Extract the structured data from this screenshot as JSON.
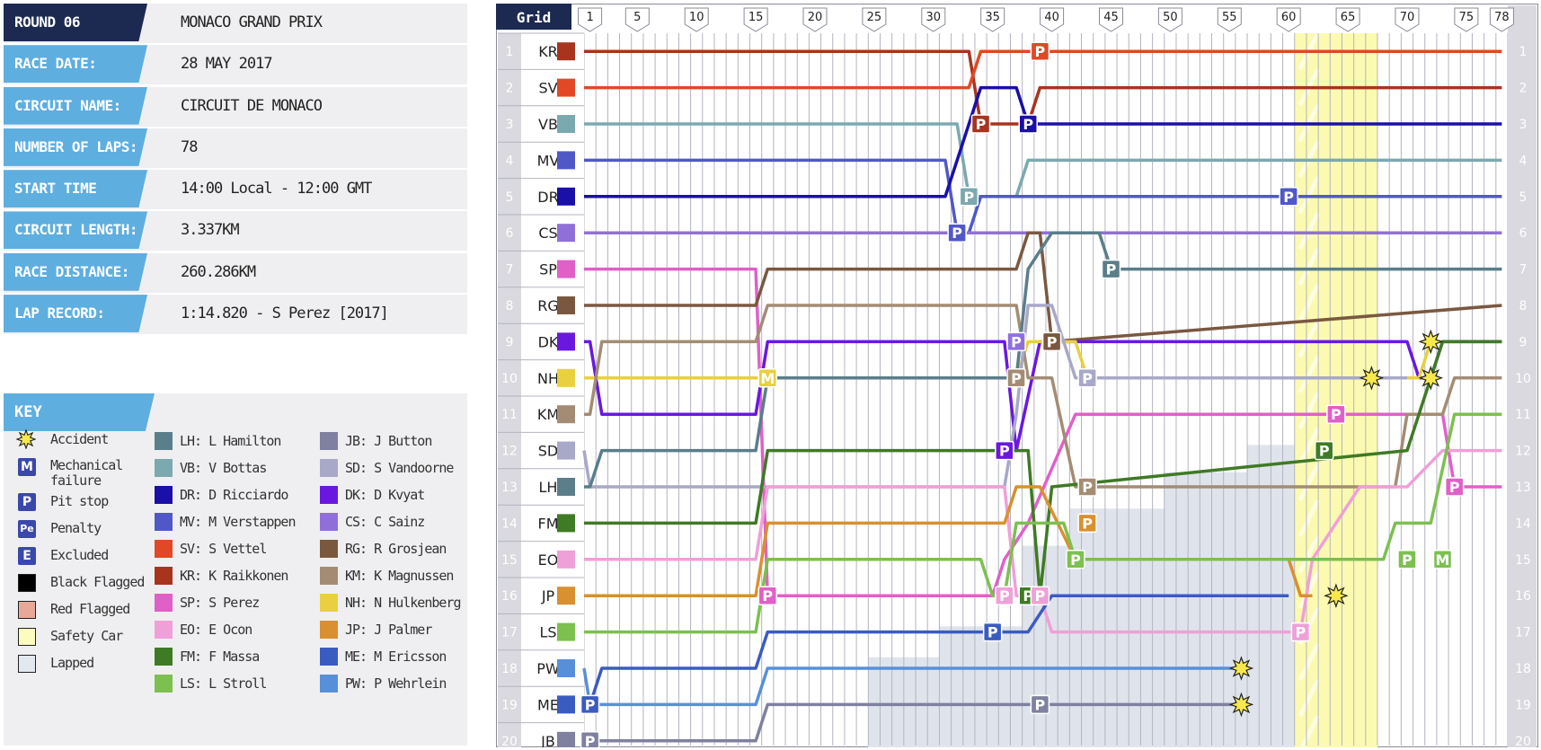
{
  "info": [
    {
      "label": "ROUND 06",
      "value": "MONACO GRAND PRIX"
    },
    {
      "label": "RACE DATE:",
      "value": "28 MAY 2017"
    },
    {
      "label": "CIRCUIT NAME:",
      "value": "CIRCUIT DE MONACO"
    },
    {
      "label": "NUMBER OF LAPS:",
      "value": "78"
    },
    {
      "label": "START TIME",
      "value": "14:00 Local - 12:00 GMT"
    },
    {
      "label": "CIRCUIT LENGTH:",
      "value": "3.337KM"
    },
    {
      "label": "RACE DISTANCE:",
      "value": "260.286KM"
    },
    {
      "label": "LAP RECORD:",
      "value": "1:14.820 - S Perez [2017]"
    }
  ],
  "key": {
    "title": "KEY",
    "symbols": [
      {
        "icon": "accident-icon",
        "label": "Accident"
      },
      {
        "icon": "mechanical-failure-icon",
        "glyph": "M",
        "label": "Mechanical failure"
      },
      {
        "icon": "pit-stop-icon",
        "glyph": "P",
        "label": "Pit stop"
      },
      {
        "icon": "penalty-icon",
        "glyph": "Pe",
        "label": "Penalty"
      },
      {
        "icon": "excluded-icon",
        "glyph": "E",
        "label": "Excluded"
      },
      {
        "icon": "black-flag-icon",
        "label": "Black Flagged",
        "color": "#000000"
      },
      {
        "icon": "red-flag-icon",
        "label": "Red Flagged",
        "color": "#e8a898"
      },
      {
        "icon": "safety-car-icon",
        "label": "Safety Car",
        "color": "#fdfcc0"
      },
      {
        "icon": "lapped-icon",
        "label": "Lapped",
        "color": "#e2e8ef"
      }
    ],
    "drivers": [
      {
        "code": "LH",
        "label": "LH: L Hamilton",
        "color": "#5a7e8a"
      },
      {
        "code": "VB",
        "label": "VB: V Bottas",
        "color": "#7ba9b0"
      },
      {
        "code": "DR",
        "label": "DR: D Ricciardo",
        "color": "#1a0fa8"
      },
      {
        "code": "MV",
        "label": "MV: M Verstappen",
        "color": "#5058c8"
      },
      {
        "code": "SV",
        "label": "SV: S Vettel",
        "color": "#e04826"
      },
      {
        "code": "KR",
        "label": "KR: K Raikkonen",
        "color": "#a8341e"
      },
      {
        "code": "SP",
        "label": "SP: S Perez",
        "color": "#e060c8"
      },
      {
        "code": "EO",
        "label": "EO: E Ocon",
        "color": "#f0a0d8"
      },
      {
        "code": "FM",
        "label": "FM: F Massa",
        "color": "#3f7a24"
      },
      {
        "code": "LS",
        "label": "LS: L Stroll",
        "color": "#7cc050"
      },
      {
        "code": "JB",
        "label": "JB: J Button",
        "color": "#8080a0"
      },
      {
        "code": "SD",
        "label": "SD: S Vandoorne",
        "color": "#a8a8c8"
      },
      {
        "code": "DK",
        "label": "DK: D Kvyat",
        "color": "#6a18e0"
      },
      {
        "code": "CS",
        "label": "CS: C Sainz",
        "color": "#9070d8"
      },
      {
        "code": "RG",
        "label": "RG: R Grosjean",
        "color": "#7a5840"
      },
      {
        "code": "KM",
        "label": "KM: K Magnussen",
        "color": "#a48c74"
      },
      {
        "code": "NH",
        "label": "NH: N Hulkenberg",
        "color": "#e8d040"
      },
      {
        "code": "JP",
        "label": "JP: J Palmer",
        "color": "#d89030"
      },
      {
        "code": "ME",
        "label": "ME: M Ericsson",
        "color": "#3a5cc0"
      },
      {
        "code": "PW",
        "label": "PW: P Wehrlein",
        "color": "#5890d8"
      }
    ]
  },
  "chart_data": {
    "type": "line",
    "grid_header": "Grid",
    "total_laps": 78,
    "lap_ticks": [
      1,
      5,
      10,
      15,
      20,
      25,
      30,
      35,
      40,
      45,
      50,
      55,
      60,
      65,
      70,
      75,
      78
    ],
    "positions": [
      1,
      2,
      3,
      4,
      5,
      6,
      7,
      8,
      9,
      10,
      11,
      12,
      13,
      14,
      15,
      16,
      17,
      18,
      19,
      20
    ],
    "safety_car_laps": [
      61,
      67
    ],
    "grid_order": [
      "KR",
      "SV",
      "VB",
      "MV",
      "DR",
      "CS",
      "SP",
      "RG",
      "DK",
      "NH",
      "KM",
      "SD",
      "LH",
      "FM",
      "EO",
      "JP",
      "LS",
      "PW",
      "ME",
      "JB"
    ],
    "series": [
      {
        "name": "KR",
        "points": [
          [
            0,
            1
          ],
          [
            33,
            1
          ],
          [
            34,
            3
          ],
          [
            38,
            3
          ],
          [
            39,
            2
          ],
          [
            78,
            2
          ]
        ]
      },
      {
        "name": "SV",
        "points": [
          [
            0,
            2
          ],
          [
            33,
            2
          ],
          [
            34,
            1
          ],
          [
            78,
            1
          ]
        ]
      },
      {
        "name": "VB",
        "points": [
          [
            0,
            3
          ],
          [
            32,
            3
          ],
          [
            33,
            5
          ],
          [
            37,
            5
          ],
          [
            38,
            4
          ],
          [
            78,
            4
          ]
        ]
      },
      {
        "name": "MV",
        "points": [
          [
            0,
            4
          ],
          [
            31,
            4
          ],
          [
            32,
            6
          ],
          [
            33,
            6
          ],
          [
            34,
            5
          ],
          [
            78,
            5
          ]
        ]
      },
      {
        "name": "DR",
        "points": [
          [
            0,
            5
          ],
          [
            31,
            5
          ],
          [
            32,
            4
          ],
          [
            34,
            2
          ],
          [
            37,
            2
          ],
          [
            38,
            3
          ],
          [
            78,
            3
          ]
        ]
      },
      {
        "name": "CS",
        "points": [
          [
            0,
            6
          ],
          [
            78,
            6
          ]
        ]
      },
      {
        "name": "SP",
        "points": [
          [
            0,
            7
          ],
          [
            15,
            7
          ],
          [
            16,
            16
          ],
          [
            35,
            16
          ],
          [
            36,
            15
          ],
          [
            38,
            14
          ],
          [
            42,
            11
          ],
          [
            73,
            11
          ],
          [
            74,
            13
          ],
          [
            78,
            13
          ]
        ]
      },
      {
        "name": "RG",
        "points": [
          [
            0,
            8
          ],
          [
            15,
            8
          ],
          [
            16,
            7
          ],
          [
            37,
            7
          ],
          [
            38,
            6
          ],
          [
            39,
            6
          ],
          [
            40,
            9
          ],
          [
            78,
            8
          ]
        ]
      },
      {
        "name": "DK",
        "points": [
          [
            0,
            9
          ],
          [
            1,
            9
          ],
          [
            2,
            11
          ],
          [
            15,
            11
          ],
          [
            16,
            9
          ],
          [
            36,
            9
          ],
          [
            37,
            12
          ],
          [
            39,
            9
          ],
          [
            70,
            9
          ],
          [
            71,
            10
          ],
          [
            72,
            10
          ],
          [
            73,
            9
          ],
          [
            78,
            9
          ]
        ]
      },
      {
        "name": "NH",
        "points": [
          [
            0,
            10
          ],
          [
            15,
            10
          ],
          [
            16,
            10
          ],
          [
            37,
            10
          ],
          [
            38,
            9
          ],
          [
            42,
            9
          ],
          [
            43,
            10
          ],
          [
            71,
            10
          ],
          [
            72,
            9
          ],
          [
            73,
            9
          ]
        ]
      },
      {
        "name": "KM",
        "points": [
          [
            0,
            11
          ],
          [
            1,
            11
          ],
          [
            2,
            9
          ],
          [
            15,
            9
          ],
          [
            16,
            8
          ],
          [
            37,
            8
          ],
          [
            38,
            10
          ],
          [
            40,
            10
          ],
          [
            42,
            13
          ],
          [
            69,
            13
          ],
          [
            70,
            11
          ],
          [
            73,
            11
          ],
          [
            74,
            10
          ],
          [
            78,
            10
          ]
        ]
      },
      {
        "name": "SD",
        "points": [
          [
            0,
            12
          ],
          [
            1,
            13
          ],
          [
            15,
            13
          ],
          [
            16,
            13
          ],
          [
            36,
            13
          ],
          [
            37,
            11
          ],
          [
            38,
            8
          ],
          [
            40,
            8
          ],
          [
            42,
            10
          ],
          [
            70,
            10
          ]
        ]
      },
      {
        "name": "LH",
        "points": [
          [
            0,
            13
          ],
          [
            1,
            13
          ],
          [
            2,
            12
          ],
          [
            15,
            12
          ],
          [
            16,
            10
          ],
          [
            37,
            10
          ],
          [
            38,
            7
          ],
          [
            40,
            6
          ],
          [
            44,
            6
          ],
          [
            45,
            7
          ],
          [
            78,
            7
          ]
        ]
      },
      {
        "name": "FM",
        "points": [
          [
            0,
            14
          ],
          [
            15,
            14
          ],
          [
            16,
            12
          ],
          [
            38,
            12
          ],
          [
            39,
            16
          ],
          [
            40,
            13
          ],
          [
            70,
            12
          ],
          [
            73,
            9
          ],
          [
            78,
            9
          ]
        ]
      },
      {
        "name": "EO",
        "points": [
          [
            0,
            15
          ],
          [
            15,
            15
          ],
          [
            16,
            13
          ],
          [
            36,
            13
          ],
          [
            37,
            16
          ],
          [
            39,
            16
          ],
          [
            40,
            17
          ],
          [
            61,
            17
          ],
          [
            62,
            15
          ],
          [
            66,
            13
          ],
          [
            70,
            13
          ],
          [
            73,
            12
          ],
          [
            78,
            12
          ]
        ]
      },
      {
        "name": "JP",
        "points": [
          [
            0,
            16
          ],
          [
            15,
            16
          ],
          [
            16,
            14
          ],
          [
            36,
            14
          ],
          [
            37,
            13
          ],
          [
            39,
            13
          ],
          [
            42,
            15
          ],
          [
            60,
            15
          ],
          [
            61,
            16
          ],
          [
            62,
            16
          ]
        ]
      },
      {
        "name": "LS",
        "points": [
          [
            0,
            17
          ],
          [
            15,
            17
          ],
          [
            16,
            15
          ],
          [
            34,
            15
          ],
          [
            35,
            16
          ],
          [
            36,
            16
          ],
          [
            37,
            14
          ],
          [
            41,
            14
          ],
          [
            42,
            15
          ],
          [
            68,
            15
          ],
          [
            69,
            14
          ],
          [
            72,
            14
          ],
          [
            74,
            11
          ],
          [
            78,
            11
          ]
        ]
      },
      {
        "name": "PW",
        "points": [
          [
            0,
            18
          ],
          [
            1,
            19
          ],
          [
            15,
            19
          ],
          [
            16,
            18
          ],
          [
            56,
            18
          ]
        ]
      },
      {
        "name": "ME",
        "points": [
          [
            0,
            19
          ],
          [
            1,
            19
          ],
          [
            2,
            18
          ],
          [
            15,
            18
          ],
          [
            16,
            17
          ],
          [
            38,
            17
          ],
          [
            40,
            16
          ],
          [
            60,
            16
          ]
        ]
      },
      {
        "name": "JB",
        "points": [
          [
            0,
            20
          ],
          [
            15,
            20
          ],
          [
            16,
            19
          ],
          [
            56,
            19
          ]
        ]
      }
    ],
    "markers": [
      {
        "type": "P",
        "lap": 39,
        "pos": 1,
        "color": "#e04826"
      },
      {
        "type": "P",
        "lap": 34,
        "pos": 3,
        "color": "#a8341e"
      },
      {
        "type": "P",
        "lap": 38,
        "pos": 3,
        "color": "#1a0fa8"
      },
      {
        "type": "P",
        "lap": 33,
        "pos": 5,
        "color": "#7ba9b0"
      },
      {
        "type": "P",
        "lap": 60,
        "pos": 5,
        "color": "#5058c8"
      },
      {
        "type": "P",
        "lap": 32,
        "pos": 6,
        "color": "#5058c8"
      },
      {
        "type": "P",
        "lap": 45,
        "pos": 7,
        "color": "#5a7e8a"
      },
      {
        "type": "P",
        "lap": 37,
        "pos": 9,
        "color": "#9070d8"
      },
      {
        "type": "P",
        "lap": 40,
        "pos": 9,
        "color": "#7a5840"
      },
      {
        "type": "M",
        "lap": 16,
        "pos": 10,
        "color": "#e8d040"
      },
      {
        "type": "P",
        "lap": 37,
        "pos": 10,
        "color": "#a48c74"
      },
      {
        "type": "P",
        "lap": 43,
        "pos": 10,
        "color": "#a8a8c8"
      },
      {
        "type": "P",
        "lap": 64,
        "pos": 11,
        "color": "#e060c8"
      },
      {
        "type": "P",
        "lap": 36,
        "pos": 12,
        "color": "#6a18e0"
      },
      {
        "type": "P",
        "lap": 63,
        "pos": 12,
        "color": "#3f7a24"
      },
      {
        "type": "P",
        "lap": 43,
        "pos": 13,
        "color": "#a48c74"
      },
      {
        "type": "P",
        "lap": 74,
        "pos": 13,
        "color": "#e060c8"
      },
      {
        "type": "P",
        "lap": 43,
        "pos": 14,
        "color": "#d89030"
      },
      {
        "type": "P",
        "lap": 42,
        "pos": 15,
        "color": "#7cc050"
      },
      {
        "type": "P",
        "lap": 70,
        "pos": 15,
        "color": "#7cc050"
      },
      {
        "type": "M",
        "lap": 73,
        "pos": 15,
        "color": "#7cc050"
      },
      {
        "type": "P",
        "lap": 16,
        "pos": 16,
        "color": "#e060c8"
      },
      {
        "type": "P",
        "lap": 36,
        "pos": 16,
        "color": "#f0a0d8"
      },
      {
        "type": "P",
        "lap": 38,
        "pos": 16,
        "color": "#3f7a24"
      },
      {
        "type": "P",
        "lap": 39,
        "pos": 16,
        "color": "#f0a0d8"
      },
      {
        "type": "P",
        "lap": 35,
        "pos": 17,
        "color": "#3a5cc0"
      },
      {
        "type": "P",
        "lap": 61,
        "pos": 17,
        "color": "#f0a0d8"
      },
      {
        "type": "P",
        "lap": 1,
        "pos": 19,
        "color": "#3a5cc0"
      },
      {
        "type": "P",
        "lap": 39,
        "pos": 19,
        "color": "#8080a0"
      },
      {
        "type": "P",
        "lap": 1,
        "pos": 20,
        "color": "#8080a0"
      },
      {
        "type": "accident",
        "lap": 56,
        "pos": 18
      },
      {
        "type": "accident",
        "lap": 56,
        "pos": 19
      },
      {
        "type": "accident",
        "lap": 64,
        "pos": 16
      },
      {
        "type": "accident",
        "lap": 67,
        "pos": 10
      },
      {
        "type": "accident",
        "lap": 72,
        "pos": 9
      },
      {
        "type": "accident",
        "lap": 72,
        "pos": 10
      }
    ]
  }
}
